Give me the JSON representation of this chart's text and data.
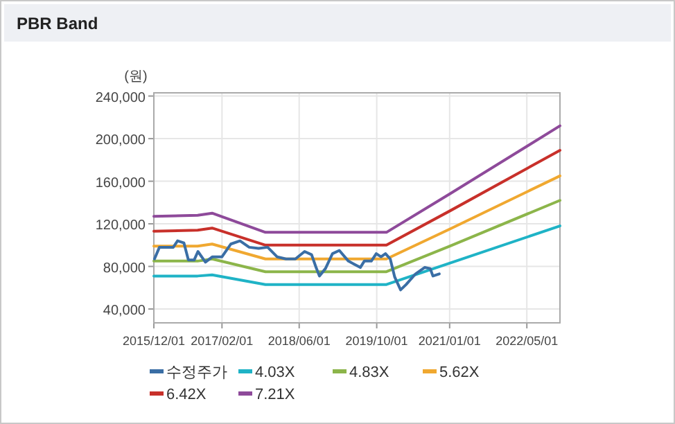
{
  "chart_data": {
    "type": "line",
    "title": "PBR Band",
    "ylabel": "(원)",
    "xlim": [
      "2015-12-01",
      "2022-11-25"
    ],
    "xticks": [
      {
        "value": "2015-12-01",
        "label": "2015/12/01"
      },
      {
        "value": "2017-02-01",
        "label": "2017/02/01"
      },
      {
        "value": "2018-06-01",
        "label": "2018/06/01"
      },
      {
        "value": "2019-10-01",
        "label": "2019/10/01"
      },
      {
        "value": "2021-01-01",
        "label": "2021/01/01"
      },
      {
        "value": "2022-05-01",
        "label": "2022/05/01"
      }
    ],
    "ylim": [
      27000,
      243000
    ],
    "yticks": [
      {
        "value": 40000,
        "label": "40,000"
      },
      {
        "value": 80000,
        "label": "80,000"
      },
      {
        "value": 120000,
        "label": "120,000"
      },
      {
        "value": 160000,
        "label": "160,000"
      },
      {
        "value": 200000,
        "label": "200,000"
      },
      {
        "value": 240000,
        "label": "240,000"
      }
    ],
    "grid": true,
    "legend": "bottom",
    "marker": "none",
    "line_style": "solid",
    "series": [
      {
        "name": "수정주가",
        "color": "#3a6ea5",
        "x": [
          "2015-12-05",
          "2016-01-05",
          "2016-04-01",
          "2016-04-28",
          "2016-06-07",
          "2016-07-05",
          "2016-08-10",
          "2016-09-03",
          "2016-10-20",
          "2016-12-03",
          "2017-02-01",
          "2017-03-28",
          "2017-05-25",
          "2017-07-22",
          "2017-09-19",
          "2017-11-15",
          "2018-01-13",
          "2018-03-10",
          "2018-05-08",
          "2018-07-05",
          "2018-08-18",
          "2018-09-15",
          "2018-10-06",
          "2018-11-13",
          "2018-12-27",
          "2019-02-08",
          "2019-04-06",
          "2019-06-20",
          "2019-07-15",
          "2019-08-28",
          "2019-09-28",
          "2019-10-28",
          "2019-11-25",
          "2019-12-25",
          "2020-01-22",
          "2020-02-28",
          "2020-04-03",
          "2020-06-01",
          "2020-07-28",
          "2020-09-01",
          "2020-09-18",
          "2020-10-28"
        ],
        "values": [
          87000,
          98000,
          98000,
          104000,
          102000,
          86000,
          86000,
          94000,
          84000,
          89000,
          89000,
          101000,
          104000,
          98000,
          97000,
          98000,
          89000,
          87000,
          87000,
          94000,
          91000,
          79000,
          71000,
          78000,
          92000,
          95000,
          85000,
          79000,
          85000,
          85000,
          92000,
          89000,
          92000,
          87000,
          70000,
          58000,
          63000,
          73000,
          79000,
          78000,
          71000,
          73000
        ]
      },
      {
        "name": "4.03X",
        "color": "#1fb3c6",
        "x": [
          "2015-12-01",
          "2016-09-01",
          "2016-12-01",
          "2017-11-01",
          "2019-12-01",
          "2021-01-01",
          "2022-11-25"
        ],
        "values": [
          71000,
          71000,
          72000,
          63000,
          63000,
          83000,
          118000
        ]
      },
      {
        "name": "4.83X",
        "color": "#8cb54a",
        "x": [
          "2015-12-01",
          "2016-09-01",
          "2016-12-01",
          "2017-11-01",
          "2019-12-01",
          "2021-01-01",
          "2022-11-25"
        ],
        "values": [
          85000,
          85000,
          87000,
          75000,
          75000,
          99000,
          142000
        ]
      },
      {
        "name": "5.62X",
        "color": "#f0a830",
        "x": [
          "2015-12-01",
          "2016-09-01",
          "2016-12-01",
          "2017-11-01",
          "2019-12-01",
          "2021-01-01",
          "2022-11-25"
        ],
        "values": [
          99000,
          99000,
          101000,
          87000,
          87000,
          115000,
          165000
        ]
      },
      {
        "name": "6.42X",
        "color": "#c8302a",
        "x": [
          "2015-12-01",
          "2016-09-01",
          "2016-12-01",
          "2017-11-01",
          "2019-12-01",
          "2021-01-01",
          "2022-11-25"
        ],
        "values": [
          113000,
          114000,
          116000,
          100000,
          100000,
          132000,
          189000
        ]
      },
      {
        "name": "7.21X",
        "color": "#8e4a9a",
        "x": [
          "2015-12-01",
          "2016-09-01",
          "2016-12-01",
          "2017-11-01",
          "2019-12-01",
          "2021-01-01",
          "2022-11-25"
        ],
        "values": [
          127000,
          128000,
          130000,
          112000,
          112000,
          148000,
          212000
        ]
      }
    ]
  }
}
